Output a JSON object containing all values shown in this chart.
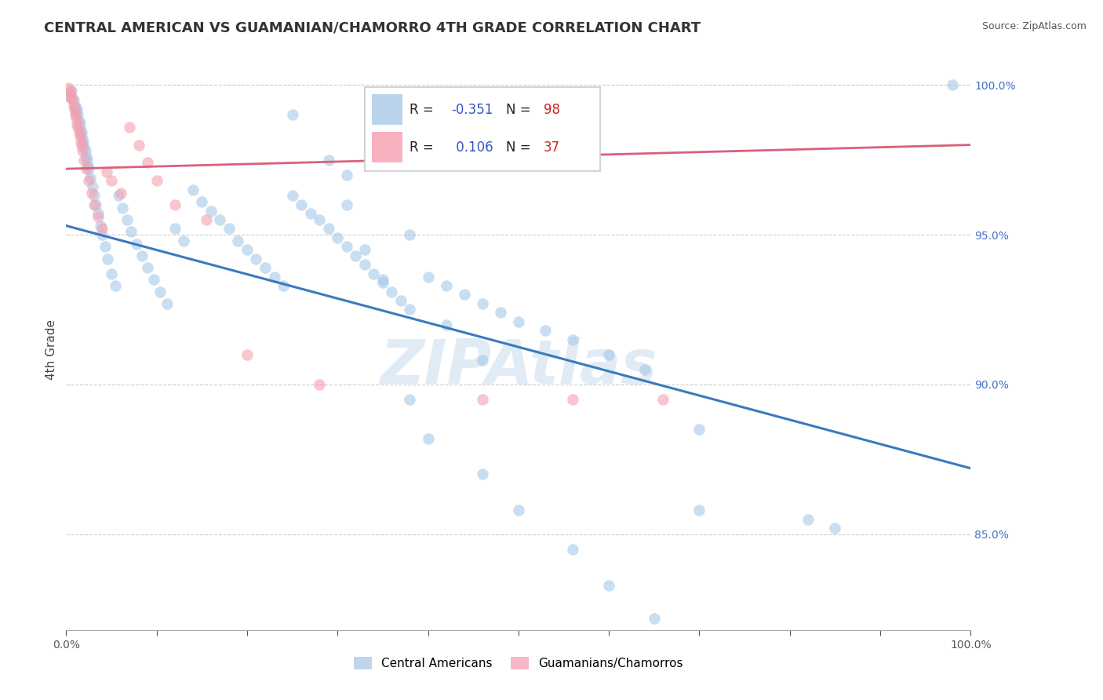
{
  "title": "CENTRAL AMERICAN VS GUAMANIAN/CHAMORRO 4TH GRADE CORRELATION CHART",
  "source": "Source: ZipAtlas.com",
  "ylabel": "4th Grade",
  "blue_R": -0.351,
  "blue_N": 98,
  "pink_R": 0.106,
  "pink_N": 37,
  "blue_color": "#a8c8e8",
  "pink_color": "#f4a0b0",
  "blue_line_color": "#3a7abf",
  "pink_line_color": "#d9607a",
  "xlim": [
    0.0,
    1.0
  ],
  "ylim": [
    0.818,
    1.005
  ],
  "yticks": [
    0.85,
    0.9,
    0.95,
    1.0
  ],
  "xticks_minor": [
    0.0,
    0.1,
    0.2,
    0.3,
    0.4,
    0.5,
    0.6,
    0.7,
    0.8,
    0.9,
    1.0
  ],
  "blue_x": [
    0.004,
    0.006,
    0.008,
    0.01,
    0.011,
    0.012,
    0.013,
    0.014,
    0.015,
    0.016,
    0.017,
    0.018,
    0.019,
    0.02,
    0.021,
    0.022,
    0.023,
    0.024,
    0.025,
    0.027,
    0.029,
    0.031,
    0.033,
    0.035,
    0.038,
    0.04,
    0.043,
    0.046,
    0.05,
    0.054,
    0.058,
    0.062,
    0.067,
    0.072,
    0.078,
    0.084,
    0.09,
    0.097,
    0.104,
    0.112,
    0.12,
    0.13,
    0.14,
    0.15,
    0.16,
    0.17,
    0.18,
    0.19,
    0.2,
    0.21,
    0.22,
    0.23,
    0.24,
    0.25,
    0.26,
    0.27,
    0.28,
    0.29,
    0.3,
    0.31,
    0.32,
    0.33,
    0.34,
    0.35,
    0.36,
    0.37,
    0.38,
    0.4,
    0.42,
    0.44,
    0.46,
    0.48,
    0.5,
    0.53,
    0.56,
    0.6,
    0.64,
    0.7,
    0.38,
    0.31,
    0.25,
    0.29,
    0.31,
    0.33,
    0.35,
    0.42,
    0.46,
    0.38,
    0.4,
    0.46,
    0.5,
    0.56,
    0.6,
    0.65,
    0.7,
    0.82,
    0.85,
    0.98
  ],
  "blue_y": [
    0.996,
    0.998,
    0.995,
    0.993,
    0.991,
    0.992,
    0.99,
    0.988,
    0.987,
    0.985,
    0.984,
    0.982,
    0.981,
    0.979,
    0.978,
    0.976,
    0.975,
    0.973,
    0.972,
    0.969,
    0.966,
    0.963,
    0.96,
    0.957,
    0.953,
    0.95,
    0.946,
    0.942,
    0.937,
    0.933,
    0.963,
    0.959,
    0.955,
    0.951,
    0.947,
    0.943,
    0.939,
    0.935,
    0.931,
    0.927,
    0.952,
    0.948,
    0.965,
    0.961,
    0.958,
    0.955,
    0.952,
    0.948,
    0.945,
    0.942,
    0.939,
    0.936,
    0.933,
    0.963,
    0.96,
    0.957,
    0.955,
    0.952,
    0.949,
    0.946,
    0.943,
    0.94,
    0.937,
    0.934,
    0.931,
    0.928,
    0.925,
    0.936,
    0.933,
    0.93,
    0.927,
    0.924,
    0.921,
    0.918,
    0.915,
    0.91,
    0.905,
    0.885,
    0.95,
    0.97,
    0.99,
    0.975,
    0.96,
    0.945,
    0.935,
    0.92,
    0.908,
    0.895,
    0.882,
    0.87,
    0.858,
    0.845,
    0.833,
    0.822,
    0.858,
    0.855,
    0.852,
    1.0
  ],
  "pink_x": [
    0.002,
    0.004,
    0.005,
    0.006,
    0.007,
    0.008,
    0.009,
    0.01,
    0.011,
    0.012,
    0.013,
    0.014,
    0.015,
    0.016,
    0.017,
    0.018,
    0.02,
    0.022,
    0.025,
    0.028,
    0.031,
    0.035,
    0.04,
    0.045,
    0.05,
    0.06,
    0.07,
    0.08,
    0.09,
    0.1,
    0.12,
    0.155,
    0.2,
    0.28,
    0.46,
    0.56,
    0.66
  ],
  "pink_y": [
    0.999,
    0.997,
    0.998,
    0.996,
    0.995,
    0.993,
    0.992,
    0.99,
    0.989,
    0.987,
    0.986,
    0.984,
    0.983,
    0.981,
    0.98,
    0.978,
    0.975,
    0.972,
    0.968,
    0.964,
    0.96,
    0.956,
    0.952,
    0.971,
    0.968,
    0.964,
    0.986,
    0.98,
    0.974,
    0.968,
    0.96,
    0.955,
    0.91,
    0.9,
    0.895,
    0.895,
    0.895
  ]
}
